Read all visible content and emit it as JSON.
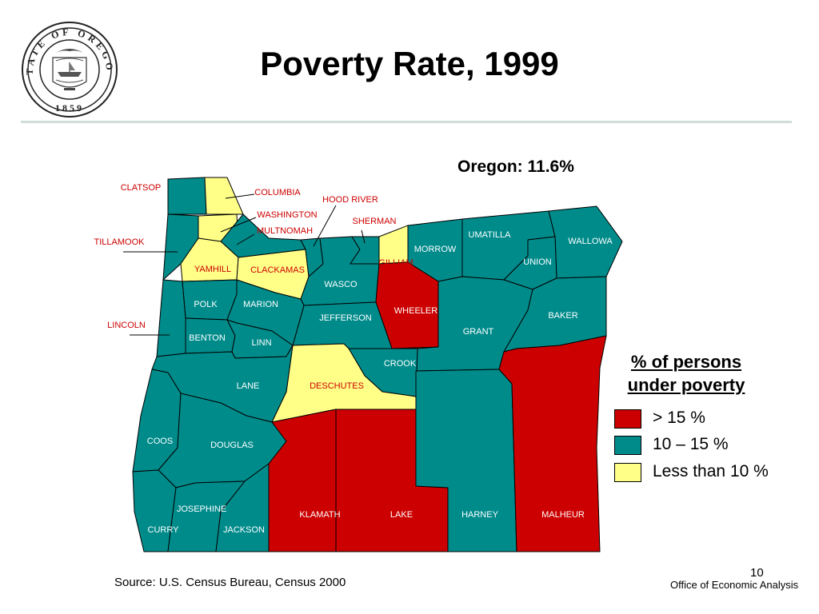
{
  "title": "Poverty Rate, 1999",
  "subtitle": "Oregon: 11.6%",
  "seal": {
    "text_top": "STATE OF OREGON",
    "year": "1859"
  },
  "colors": {
    "high": "#cc0000",
    "mid": "#008b8b",
    "low": "#ffff88",
    "outline": "#000000",
    "rule": "#cfdfd8"
  },
  "legend": {
    "title_line1": "% of persons",
    "title_line2": "under poverty",
    "items": [
      {
        "label": "> 15 %",
        "color": "#cc0000"
      },
      {
        "label": "10 – 15 %",
        "color": "#008b8b"
      },
      {
        "label": "Less than 10 %",
        "color": "#ffff88"
      }
    ]
  },
  "counties": [
    {
      "name": "CLATSOP",
      "category": "mid",
      "label_color": "red"
    },
    {
      "name": "COLUMBIA",
      "category": "low",
      "label_color": "red"
    },
    {
      "name": "HOOD RIVER",
      "category": "mid",
      "label_color": "red"
    },
    {
      "name": "WASHINGTON",
      "category": "low",
      "label_color": "red"
    },
    {
      "name": "SHERMAN",
      "category": "mid",
      "label_color": "red"
    },
    {
      "name": "MULTNOMAH",
      "category": "mid",
      "label_color": "red"
    },
    {
      "name": "UMATILLA",
      "category": "mid",
      "label_color": "white"
    },
    {
      "name": "MORROW",
      "category": "mid",
      "label_color": "white"
    },
    {
      "name": "WALLOWA",
      "category": "mid",
      "label_color": "white"
    },
    {
      "name": "TILLAMOOK",
      "category": "mid",
      "label_color": "red"
    },
    {
      "name": "GILLIAM",
      "category": "low",
      "label_color": "red"
    },
    {
      "name": "UNION",
      "category": "mid",
      "label_color": "white"
    },
    {
      "name": "YAMHILL",
      "category": "low",
      "label_color": "red"
    },
    {
      "name": "CLACKAMAS",
      "category": "low",
      "label_color": "red"
    },
    {
      "name": "WASCO",
      "category": "mid",
      "label_color": "white"
    },
    {
      "name": "POLK",
      "category": "mid",
      "label_color": "white"
    },
    {
      "name": "MARION",
      "category": "mid",
      "label_color": "white"
    },
    {
      "name": "WHEELER",
      "category": "high",
      "label_color": "white"
    },
    {
      "name": "BAKER",
      "category": "mid",
      "label_color": "white"
    },
    {
      "name": "JEFFERSON",
      "category": "mid",
      "label_color": "white"
    },
    {
      "name": "LINCOLN",
      "category": "mid",
      "label_color": "red"
    },
    {
      "name": "GRANT",
      "category": "mid",
      "label_color": "white"
    },
    {
      "name": "BENTON",
      "category": "mid",
      "label_color": "white"
    },
    {
      "name": "LINN",
      "category": "mid",
      "label_color": "white"
    },
    {
      "name": "CROOK",
      "category": "mid",
      "label_color": "white"
    },
    {
      "name": "LANE",
      "category": "mid",
      "label_color": "white"
    },
    {
      "name": "DESCHUTES",
      "category": "low",
      "label_color": "red"
    },
    {
      "name": "COOS",
      "category": "mid",
      "label_color": "white"
    },
    {
      "name": "DOUGLAS",
      "category": "mid",
      "label_color": "white"
    },
    {
      "name": "JOSEPHINE",
      "category": "mid",
      "label_color": "white"
    },
    {
      "name": "KLAMATH",
      "category": "high",
      "label_color": "white"
    },
    {
      "name": "LAKE",
      "category": "high",
      "label_color": "white"
    },
    {
      "name": "HARNEY",
      "category": "mid",
      "label_color": "white"
    },
    {
      "name": "MALHEUR",
      "category": "high",
      "label_color": "white"
    },
    {
      "name": "CURRY",
      "category": "mid",
      "label_color": "white"
    },
    {
      "name": "JACKSON",
      "category": "mid",
      "label_color": "white"
    }
  ],
  "footer": {
    "source": "Source:  U.S. Census Bureau, Census 2000",
    "office": "Office of Economic Analysis",
    "page_number": "10"
  }
}
